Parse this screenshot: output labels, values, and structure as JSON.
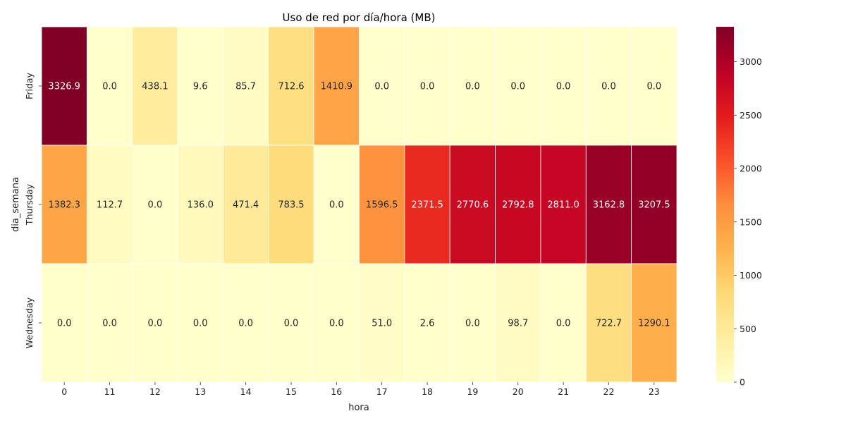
{
  "chart_data": {
    "type": "heatmap",
    "title": "Uso de red por día/hora (MB)",
    "xlabel": "hora",
    "ylabel": "dia_semana",
    "x": [
      "0",
      "11",
      "12",
      "13",
      "14",
      "15",
      "16",
      "17",
      "18",
      "19",
      "20",
      "21",
      "22",
      "23"
    ],
    "y": [
      "Friday",
      "Thursday",
      "Wednesday"
    ],
    "values": [
      [
        3326.9,
        0.0,
        438.1,
        9.6,
        85.7,
        712.6,
        1410.9,
        0.0,
        0.0,
        0.0,
        0.0,
        0.0,
        0.0,
        0.0
      ],
      [
        1382.3,
        112.7,
        0.0,
        136.0,
        471.4,
        783.5,
        0.0,
        1596.5,
        2371.5,
        2770.6,
        2792.8,
        2811.0,
        3162.8,
        3207.5
      ],
      [
        0.0,
        0.0,
        0.0,
        0.0,
        0.0,
        0.0,
        0.0,
        51.0,
        2.6,
        0.0,
        98.7,
        0.0,
        722.7,
        1290.1
      ]
    ],
    "value_format": "1 decimal",
    "colormap": "YlOrRd",
    "colorbar": {
      "range": [
        0,
        3326.9
      ],
      "ticks": [
        "0",
        "500",
        "1000",
        "1500",
        "2000",
        "2500",
        "3000"
      ]
    }
  }
}
